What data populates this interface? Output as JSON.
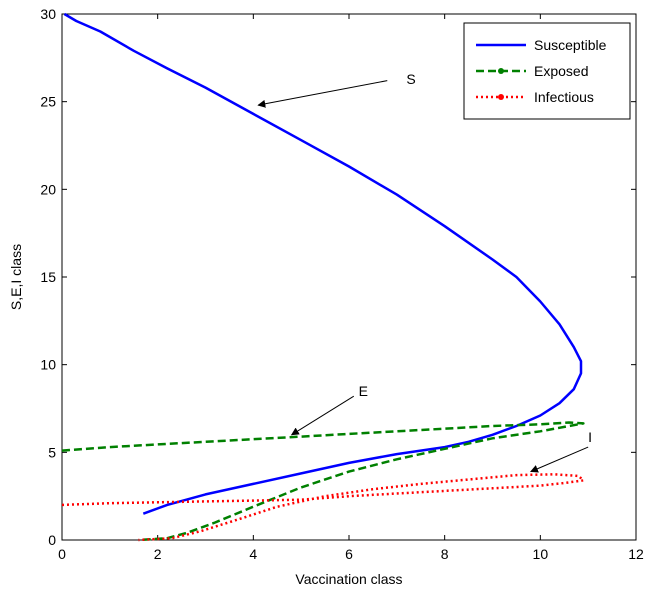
{
  "chart_data": {
    "type": "line",
    "xlabel": "Vaccination class",
    "ylabel": "S,E,I class",
    "xlim": [
      0,
      12
    ],
    "ylim": [
      0,
      30
    ],
    "xticks": [
      "0",
      "2",
      "4",
      "6",
      "8",
      "10",
      "12"
    ],
    "yticks": [
      "0",
      "5",
      "10",
      "15",
      "20",
      "25",
      "30"
    ],
    "grid": false,
    "legend_position": "top-right",
    "series": [
      {
        "name": "Susceptible",
        "color": "#0000ff",
        "style": "solid",
        "points": [
          [
            0.05,
            30.0
          ],
          [
            0.3,
            29.6
          ],
          [
            0.8,
            29.0
          ],
          [
            1.5,
            27.9
          ],
          [
            2.2,
            26.9
          ],
          [
            3.0,
            25.8
          ],
          [
            4.0,
            24.3
          ],
          [
            5.0,
            22.8
          ],
          [
            6.0,
            21.3
          ],
          [
            7.0,
            19.7
          ],
          [
            8.0,
            17.9
          ],
          [
            9.0,
            16.0
          ],
          [
            9.5,
            15.0
          ],
          [
            10.0,
            13.6
          ],
          [
            10.4,
            12.3
          ],
          [
            10.7,
            11.0
          ],
          [
            10.85,
            10.2
          ],
          [
            10.85,
            9.5
          ],
          [
            10.7,
            8.6
          ],
          [
            10.4,
            7.8
          ],
          [
            10.0,
            7.1
          ],
          [
            9.5,
            6.5
          ],
          [
            9.0,
            6.0
          ],
          [
            8.5,
            5.6
          ],
          [
            8.0,
            5.3
          ],
          [
            7.0,
            4.9
          ],
          [
            6.0,
            4.4
          ],
          [
            5.0,
            3.8
          ],
          [
            4.0,
            3.2
          ],
          [
            3.0,
            2.6
          ],
          [
            2.2,
            2.0
          ],
          [
            1.7,
            1.5
          ]
        ]
      },
      {
        "name": "Exposed",
        "color": "#008000",
        "style": "dashed",
        "points": [
          [
            0.0,
            5.1
          ],
          [
            1.0,
            5.3
          ],
          [
            2.0,
            5.45
          ],
          [
            3.0,
            5.6
          ],
          [
            4.0,
            5.75
          ],
          [
            5.0,
            5.9
          ],
          [
            6.0,
            6.05
          ],
          [
            7.0,
            6.2
          ],
          [
            8.0,
            6.35
          ],
          [
            9.0,
            6.5
          ],
          [
            10.0,
            6.6
          ],
          [
            10.6,
            6.7
          ],
          [
            10.9,
            6.65
          ],
          [
            10.5,
            6.45
          ],
          [
            10.0,
            6.2
          ],
          [
            9.0,
            5.8
          ],
          [
            8.0,
            5.2
          ],
          [
            7.0,
            4.6
          ],
          [
            6.0,
            3.9
          ],
          [
            5.0,
            3.0
          ],
          [
            4.0,
            1.9
          ],
          [
            3.2,
            1.0
          ],
          [
            2.6,
            0.4
          ],
          [
            2.2,
            0.1
          ],
          [
            1.6,
            0.0
          ]
        ]
      },
      {
        "name": "Infectious",
        "color": "#ff0000",
        "style": "dotted",
        "points": [
          [
            0.0,
            2.0
          ],
          [
            1.0,
            2.1
          ],
          [
            2.0,
            2.15
          ],
          [
            3.0,
            2.2
          ],
          [
            4.0,
            2.25
          ],
          [
            5.0,
            2.3
          ],
          [
            6.0,
            2.5
          ],
          [
            7.0,
            2.65
          ],
          [
            8.0,
            2.8
          ],
          [
            9.0,
            2.95
          ],
          [
            10.0,
            3.1
          ],
          [
            10.5,
            3.25
          ],
          [
            10.9,
            3.4
          ],
          [
            10.8,
            3.65
          ],
          [
            10.3,
            3.75
          ],
          [
            9.5,
            3.7
          ],
          [
            8.5,
            3.45
          ],
          [
            7.5,
            3.2
          ],
          [
            6.5,
            2.9
          ],
          [
            5.5,
            2.5
          ],
          [
            4.5,
            1.9
          ],
          [
            3.6,
            1.1
          ],
          [
            2.9,
            0.5
          ],
          [
            2.3,
            0.1
          ],
          [
            1.6,
            0.0
          ]
        ]
      }
    ],
    "annotations": [
      {
        "text": "S",
        "label_at": [
          7.2,
          26.0
        ],
        "arrow_from": [
          6.8,
          26.2
        ],
        "arrow_to": [
          4.1,
          24.8
        ]
      },
      {
        "text": "E",
        "label_at": [
          6.2,
          8.2
        ],
        "arrow_from": [
          6.1,
          8.2
        ],
        "arrow_to": [
          4.8,
          6.0
        ]
      },
      {
        "text": "I",
        "label_at": [
          11.0,
          5.6
        ],
        "arrow_from": [
          11.0,
          5.3
        ],
        "arrow_to": [
          9.8,
          3.9
        ]
      }
    ]
  }
}
